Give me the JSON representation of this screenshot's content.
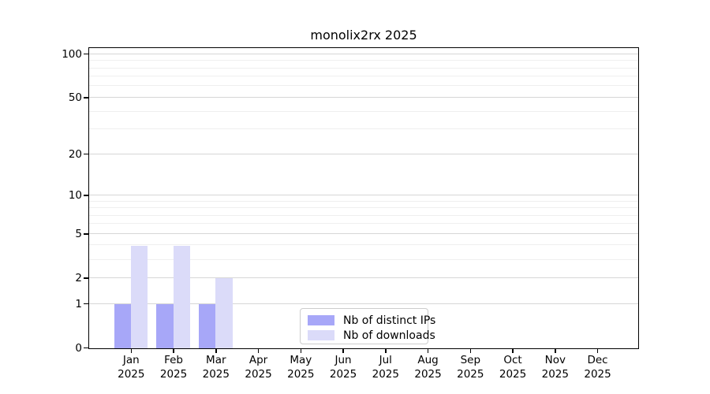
{
  "chart_data": {
    "type": "bar",
    "title": "monolix2rx 2025",
    "categories": [
      "Jan 2025",
      "Feb 2025",
      "Mar 2025",
      "Apr 2025",
      "May 2025",
      "Jun 2025",
      "Jul 2025",
      "Aug 2025",
      "Sep 2025",
      "Oct 2025",
      "Nov 2025",
      "Dec 2025"
    ],
    "series": [
      {
        "name": "Nb of distinct IPs",
        "color": "#a7a7f8",
        "values": [
          1,
          1,
          1,
          0,
          0,
          0,
          0,
          0,
          0,
          0,
          0,
          0
        ]
      },
      {
        "name": "Nb of downloads",
        "color": "#dbdbf9",
        "values": [
          4,
          4,
          2,
          0,
          0,
          0,
          0,
          0,
          0,
          0,
          0,
          0
        ]
      }
    ],
    "xlabel": "",
    "ylabel": "",
    "yaxis": {
      "scale": "log1p",
      "ticks": [
        0,
        1,
        2,
        5,
        10,
        20,
        50,
        100
      ],
      "minor_ticks": [
        3,
        4,
        6,
        7,
        8,
        9,
        30,
        40,
        60,
        70,
        80,
        90
      ],
      "ylim": [
        0,
        112
      ]
    },
    "grid": "on",
    "legend_position": "bottom-center",
    "colors": {
      "major_grid": "#d6d6d6",
      "minor_grid": "#efefef",
      "spine": "#000000",
      "text": "#000000",
      "background": "#ffffff"
    }
  }
}
